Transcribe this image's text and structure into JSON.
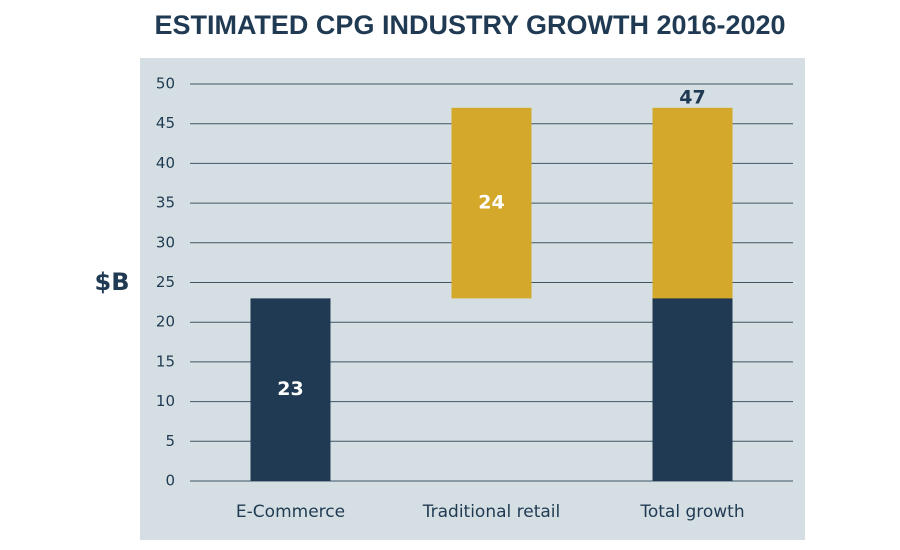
{
  "chart_data": {
    "type": "waterfall",
    "title": "ESTIMATED CPG INDUSTRY GROWTH 2016-2020",
    "y_label": "$B",
    "categories": [
      "E-Commerce",
      "Traditional retail",
      "Total growth"
    ],
    "values": [
      23,
      24,
      47
    ],
    "colors": [
      "#1f3a52",
      "#d4a82a"
    ],
    "ylim": [
      0,
      50
    ],
    "yticks": [
      0,
      5,
      10,
      15,
      20,
      25,
      30,
      35,
      40,
      45,
      50
    ],
    "grid": true
  }
}
